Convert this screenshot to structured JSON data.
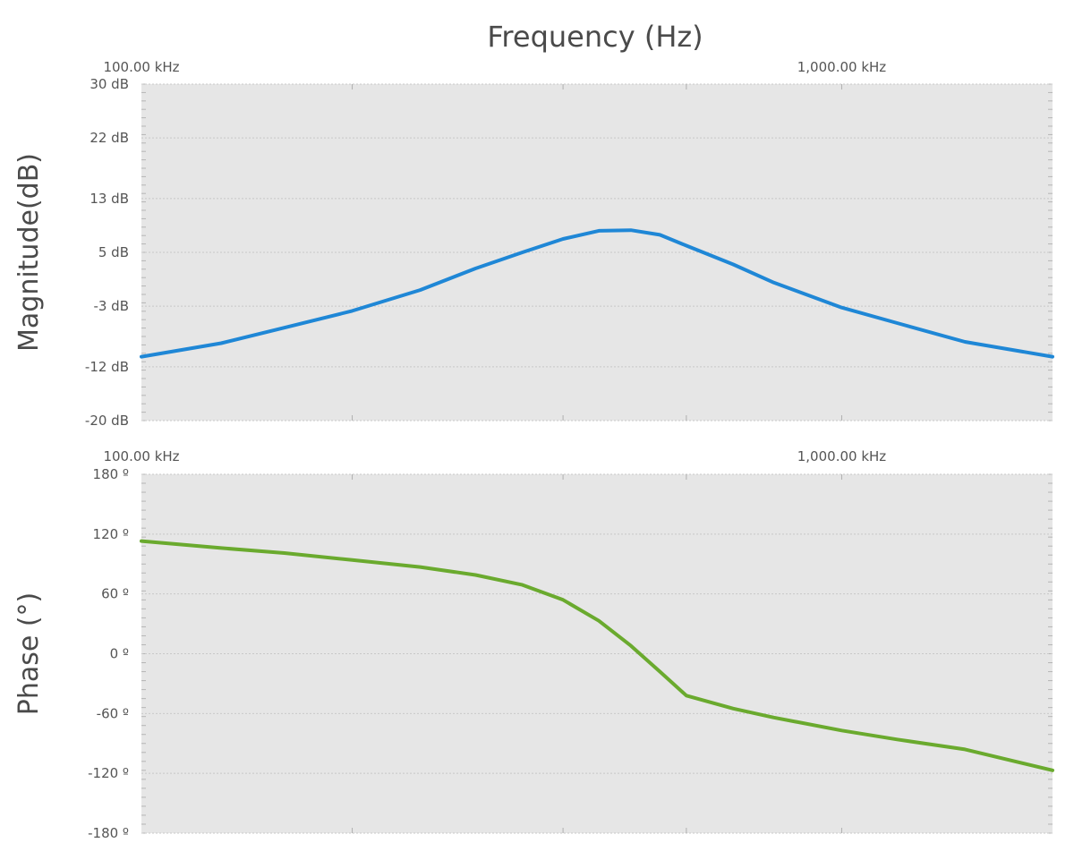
{
  "chart_data": [
    {
      "type": "line",
      "title": "Frequency (Hz)",
      "xlabel": "Frequency (Hz)",
      "ylabel": "Magnitude(dB)",
      "x_scale": "log",
      "xlim": [
        100000,
        2000000
      ],
      "ylim": [
        -20,
        30
      ],
      "x_tick_values": [
        100000,
        1000000
      ],
      "x_tick_labels": [
        "100.00 kHz",
        "1,000.00 kHz"
      ],
      "y_tick_values": [
        30,
        22,
        13,
        5,
        -3,
        -12,
        -20
      ],
      "y_tick_labels": [
        "30 dB",
        "22 dB",
        "13 dB",
        "5 dB",
        "-3 dB",
        "-12 dB",
        "-20 dB"
      ],
      "grid": true,
      "series": [
        {
          "color": "#1f87d6",
          "x": [
            100000,
            130000,
            160000,
            200000,
            250000,
            300000,
            350000,
            400000,
            450000,
            500000,
            550000,
            600000,
            700000,
            800000,
            1000000,
            1200000,
            1500000,
            2000000
          ],
          "y": [
            -10.5,
            -8.5,
            -6.2,
            -3.7,
            -0.6,
            2.6,
            5.0,
            7.0,
            8.2,
            8.3,
            7.6,
            6.0,
            3.2,
            0.5,
            -3.2,
            -5.5,
            -8.3,
            -10.5
          ]
        }
      ]
    },
    {
      "type": "line",
      "xlabel": "",
      "ylabel": "Phase (°)",
      "x_scale": "log",
      "xlim": [
        100000,
        2000000
      ],
      "ylim": [
        -180,
        180
      ],
      "x_tick_values": [
        100000,
        1000000
      ],
      "x_tick_labels": [
        "100.00 kHz",
        "1,000.00 kHz"
      ],
      "y_tick_values": [
        180,
        120,
        60,
        0,
        -60,
        -120,
        -180
      ],
      "y_tick_labels": [
        "180 º",
        "120 º",
        "60 º",
        "0 º",
        "-60 º",
        "-120 º",
        "-180 º"
      ],
      "grid": true,
      "series": [
        {
          "color": "#6aaa2e",
          "x": [
            100000,
            130000,
            160000,
            200000,
            250000,
            300000,
            350000,
            400000,
            450000,
            500000,
            550000,
            600000,
            700000,
            800000,
            1000000,
            1200000,
            1500000,
            2000000
          ],
          "y": [
            113,
            106,
            101,
            94,
            87,
            79,
            69,
            54,
            33,
            8,
            -18,
            -42,
            -55,
            -64,
            -77,
            -86,
            -96,
            -117
          ]
        }
      ]
    }
  ]
}
